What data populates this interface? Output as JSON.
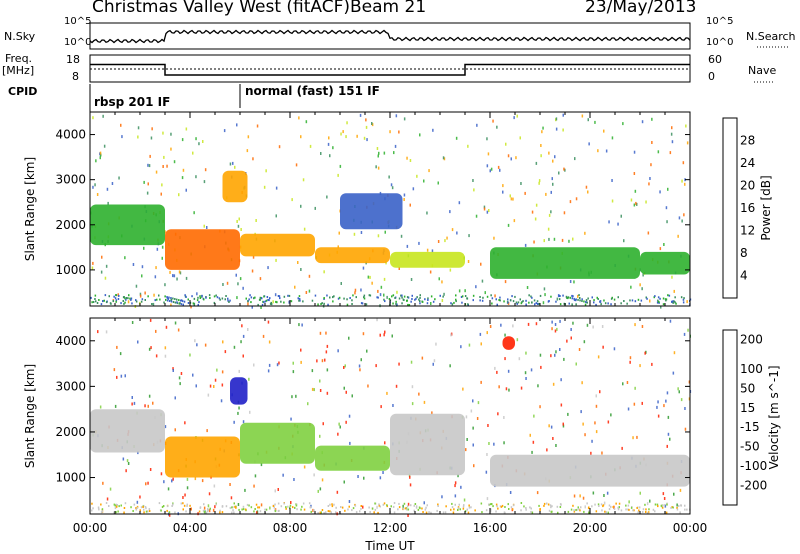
{
  "header": {
    "title": "Christmas Valley West (fitACF)",
    "beam": "Beam 21",
    "date": "23/May/2013"
  },
  "summary_panel": {
    "nsky_label": "N.Sky",
    "nsearch_label": "N.Search",
    "freq_label": "Freq.",
    "freq_unit": "[MHz]",
    "nave_label": "Nave",
    "cpid_label": "CPID",
    "nsky_ticks": [
      "10^5",
      "10^0"
    ],
    "nsearch_ticks": [
      "10^5",
      "10^0"
    ],
    "freq_ticks": [
      "18",
      "8"
    ],
    "nave_ticks": [
      "60",
      "0"
    ],
    "cpid_segments": [
      {
        "start_hour": 0,
        "end_hour": 6,
        "label": "rbsp 201 IF"
      },
      {
        "start_hour": 6,
        "end_hour": 24,
        "label": "normal (fast) 151 IF"
      }
    ],
    "freq_steps": [
      {
        "start_hour": 0,
        "end_hour": 3,
        "value": 14.5
      },
      {
        "start_hour": 3,
        "end_hour": 15,
        "value": 10.6
      },
      {
        "start_hour": 15,
        "end_hour": 24,
        "value": 14.5
      }
    ]
  },
  "chart_data": [
    {
      "type": "heatmap",
      "name": "power",
      "ylabel": "Slant Range [km]",
      "ylim": [
        200,
        4500
      ],
      "yticks": [
        "1000",
        "2000",
        "3000",
        "4000"
      ],
      "xlim": [
        0,
        24
      ],
      "colorbar_label": "Power [dB]",
      "colorbar_ticks": [
        "4",
        "8",
        "12",
        "16",
        "20",
        "24",
        "28"
      ],
      "colors": [
        "#0000ff",
        "#3a62c8",
        "#3b8f5f",
        "#2db02d",
        "#c8e61e",
        "#ffa500",
        "#ff6a00",
        "#ff0000"
      ],
      "bands": [
        {
          "h0": 0,
          "h1": 3,
          "r0": 1550,
          "r1": 2450,
          "value": 14
        },
        {
          "h0": 3,
          "h1": 6,
          "r0": 1000,
          "r1": 1900,
          "value": 27
        },
        {
          "h0": 6,
          "h1": 9,
          "r0": 1300,
          "r1": 1800,
          "value": 24
        },
        {
          "h0": 9,
          "h1": 12,
          "r0": 1150,
          "r1": 1500,
          "value": 22
        },
        {
          "h0": 12,
          "h1": 15,
          "r0": 1050,
          "r1": 1400,
          "value": 20
        },
        {
          "h0": 16,
          "h1": 22,
          "r0": 800,
          "r1": 1500,
          "value": 16
        },
        {
          "h0": 22,
          "h1": 24,
          "r0": 900,
          "r1": 1400,
          "value": 15
        },
        {
          "h0": 5.3,
          "h1": 6.3,
          "r0": 2500,
          "r1": 3200,
          "value": 22
        },
        {
          "h0": 10,
          "h1": 12.5,
          "r0": 1900,
          "r1": 2700,
          "value": 8
        }
      ]
    },
    {
      "type": "heatmap",
      "name": "velocity",
      "ylabel": "Slant Range [km]",
      "xlabel": "Time UT",
      "ylim": [
        200,
        4500
      ],
      "yticks": [
        "1000",
        "2000",
        "3000",
        "4000"
      ],
      "xlim": [
        0,
        24
      ],
      "xticks": [
        "00:00",
        "04:00",
        "08:00",
        "12:00",
        "16:00",
        "20:00",
        "00:00"
      ],
      "colorbar_label": "Velocity [m s^-1]",
      "colorbar_ticks": [
        "200",
        "100",
        "50",
        "15",
        "-15",
        "-50",
        "-100",
        "-200"
      ],
      "colors": [
        "#2020c8",
        "#3a62c8",
        "#2e9a2e",
        "#80d040",
        "#c8c8c8",
        "#ffa500",
        "#ff6a00",
        "#ff2000",
        "#e00000"
      ],
      "bands": [
        {
          "h0": 0,
          "h1": 3,
          "r0": 1550,
          "r1": 2500,
          "value": 0
        },
        {
          "h0": 3,
          "h1": 6,
          "r0": 1000,
          "r1": 1900,
          "value": -30
        },
        {
          "h0": 6,
          "h1": 9,
          "r0": 1300,
          "r1": 2200,
          "value": 30
        },
        {
          "h0": 9,
          "h1": 12,
          "r0": 1150,
          "r1": 1700,
          "value": 40
        },
        {
          "h0": 12,
          "h1": 15,
          "r0": 1050,
          "r1": 2400,
          "value": 0
        },
        {
          "h0": 16,
          "h1": 24,
          "r0": 800,
          "r1": 1500,
          "value": 0
        },
        {
          "h0": 5.6,
          "h1": 6.3,
          "r0": 2600,
          "r1": 3200,
          "value": 220
        },
        {
          "h0": 16.5,
          "h1": 17,
          "r0": 3800,
          "r1": 4100,
          "value": -180
        }
      ]
    }
  ]
}
